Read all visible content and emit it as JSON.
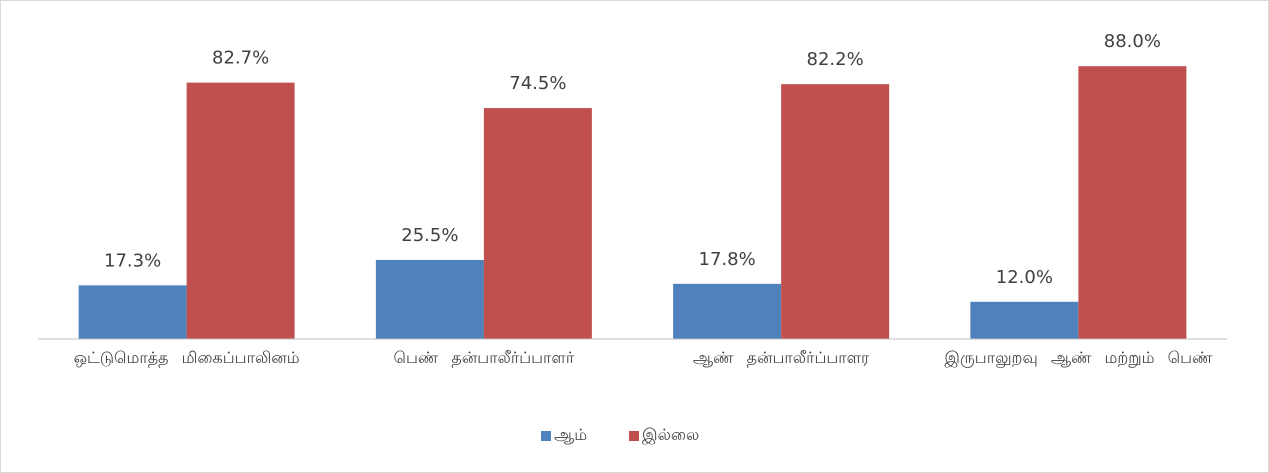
{
  "chart_data": {
    "type": "bar",
    "categories": [
      "ஒட்டுமொத்த மிகைப்பாலினம்",
      "பெண் தன்பாலீர்ப்பாளர்",
      "ஆண் தன்பாலீர்ப்பாளர",
      "இருபாலுறவு ஆண் மற்றும் பெண்"
    ],
    "series": [
      {
        "name": "ஆம்",
        "color": "#4f81bd",
        "values": [
          17.3,
          25.5,
          17.8,
          12.0
        ],
        "value_labels": [
          "17.3%",
          "25.5%",
          "17.8%",
          "12.0%"
        ]
      },
      {
        "name": "இல்லை",
        "color": "#c0504d",
        "values": [
          82.7,
          74.5,
          82.2,
          88.0
        ],
        "value_labels": [
          "82.7%",
          "74.5%",
          "82.2%",
          "88.0%"
        ]
      }
    ],
    "ylim": [
      0,
      100
    ],
    "legend": "bottom"
  }
}
